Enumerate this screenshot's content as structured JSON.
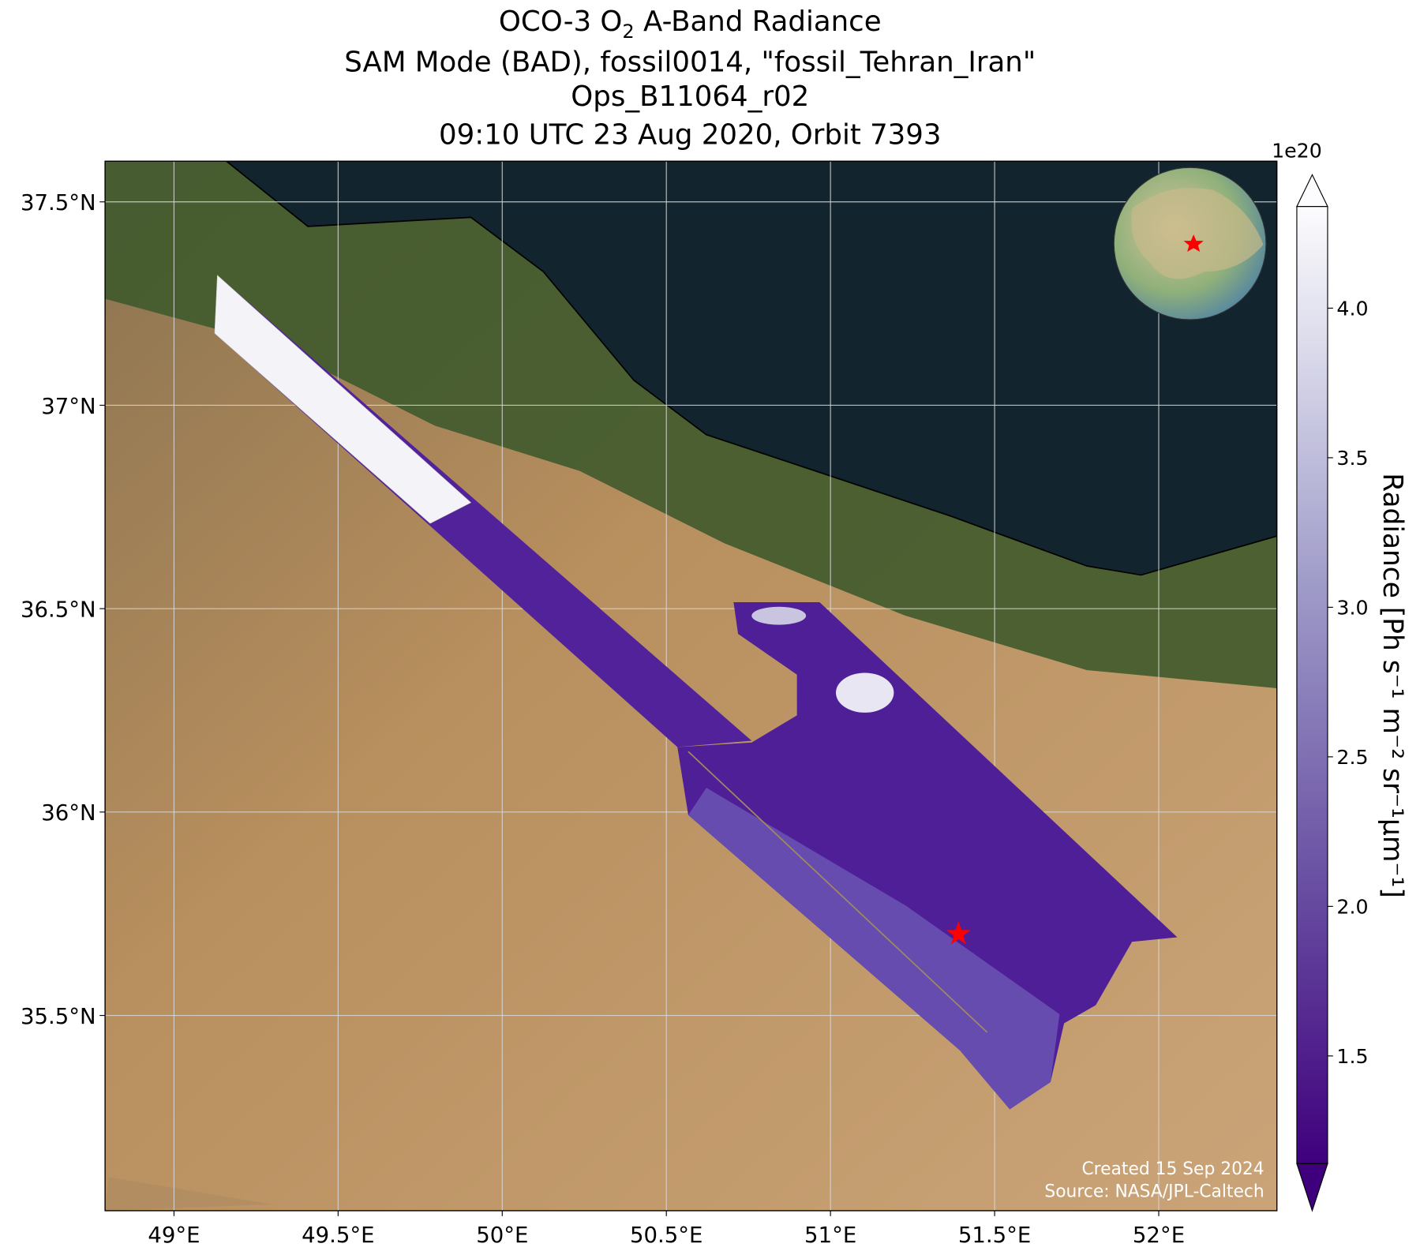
{
  "title_parts": [
    "OCO-3 O",
    "2",
    " A-Band Radiance"
  ],
  "subtitle_lines": [
    "SAM Mode (BAD), fossil0014, \"fossil_Tehran_Iran\"",
    "Ops_B11064_r02",
    "09:10 UTC 23 Aug 2020, Orbit 7393"
  ],
  "map": {
    "xlim": [
      48.79,
      52.36
    ],
    "ylim": [
      35.02,
      37.6
    ],
    "xticks": [
      {
        "value": 49,
        "label": "49°E"
      },
      {
        "value": 49.5,
        "label": "49.5°E"
      },
      {
        "value": 50,
        "label": "50°E"
      },
      {
        "value": 50.5,
        "label": "50.5°E"
      },
      {
        "value": 51,
        "label": "51°E"
      },
      {
        "value": 51.5,
        "label": "51.5°E"
      },
      {
        "value": 52,
        "label": "52°E"
      }
    ],
    "yticks": [
      {
        "value": 35.5,
        "label": "35.5°N"
      },
      {
        "value": 36,
        "label": "36°N"
      },
      {
        "value": 36.5,
        "label": "36.5°N"
      },
      {
        "value": 37,
        "label": "37°N"
      },
      {
        "value": 37.5,
        "label": "37.5°N"
      }
    ],
    "grid": true
  },
  "target": {
    "lon": 51.39,
    "lat": 35.7,
    "color": "#ff0000"
  },
  "colorbar": {
    "label": "Radiance [Ph s⁻¹ m⁻² sr⁻¹μm⁻¹]",
    "offset_text": "1e20",
    "lim": [
      1.14,
      4.34
    ],
    "ticks": [
      {
        "value": 1.5,
        "label": "1.5"
      },
      {
        "value": 2,
        "label": "2.0"
      },
      {
        "value": 2.5,
        "label": "2.5"
      },
      {
        "value": 3,
        "label": "3.0"
      },
      {
        "value": 3.5,
        "label": "3.5"
      },
      {
        "value": 4,
        "label": "4.0"
      }
    ]
  },
  "credits": [
    "Created 15 Sep 2024",
    "Source: NASA/JPL-Caltech"
  ]
}
